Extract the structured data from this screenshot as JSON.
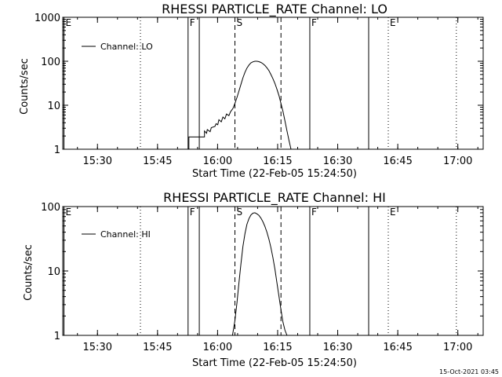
{
  "chart_data": [
    {
      "type": "line",
      "title": "RHESSI PARTICLE_RATE Channel: LO",
      "xlabel": "Start Time (22-Feb-05 15:24:50)",
      "ylabel": "Counts/sec",
      "yscale": "log",
      "ylim": [
        1,
        1000
      ],
      "xlim": [
        -3.5,
        101.5
      ],
      "x_units": "minutes since 15:24:50",
      "xticks": [
        {
          "label": "15:30",
          "value": 5.17
        },
        {
          "label": "15:45",
          "value": 20.17
        },
        {
          "label": "16:00",
          "value": 35.17
        },
        {
          "label": "16:15",
          "value": 50.17
        },
        {
          "label": "16:30",
          "value": 65.17
        },
        {
          "label": "16:45",
          "value": 80.17
        },
        {
          "label": "17:00",
          "value": 95.17
        }
      ],
      "yticks": [
        {
          "label": "1",
          "value": 1
        },
        {
          "label": "10",
          "value": 10
        },
        {
          "label": "100",
          "value": 100
        },
        {
          "label": "1000",
          "value": 1000
        }
      ],
      "legend": {
        "label": "Channel: LO",
        "placement": "top-left"
      },
      "markers": [
        {
          "label": "E",
          "x": -3.2,
          "style": "solid"
        },
        {
          "label": "",
          "x": 15.9,
          "style": "dotted"
        },
        {
          "label": "F",
          "x": 27.8,
          "style": "solid"
        },
        {
          "label": "",
          "x": 30.6,
          "style": "solid"
        },
        {
          "label": "S",
          "x": 39.5,
          "style": "dashed"
        },
        {
          "label": "",
          "x": 51.0,
          "style": "dashed"
        },
        {
          "label": "F",
          "x": 58.2,
          "style": "solid"
        },
        {
          "label": "",
          "x": 72.9,
          "style": "solid"
        },
        {
          "label": "E",
          "x": 77.8,
          "style": "dotted"
        },
        {
          "label": "",
          "x": 94.8,
          "style": "dotted"
        }
      ],
      "series": [
        {
          "name": "Channel: LO",
          "x": [
            28.0,
            28.0,
            31.9,
            31.9,
            32.4,
            32.6,
            33.3,
            33.6,
            34.5,
            34.8,
            35.2,
            35.5,
            36.1,
            36.5,
            37.0,
            37.4,
            38.0,
            38.4,
            39.0,
            39.5,
            40.0,
            40.5,
            41.0,
            41.5,
            42.0,
            42.5,
            43.0,
            43.5,
            44.0,
            44.5,
            45.0,
            45.5,
            46.0,
            46.5,
            47.0,
            47.5,
            48.0,
            48.5,
            49.0,
            49.5,
            50.0,
            50.5,
            51.0,
            51.5,
            52.0,
            52.5,
            53.0,
            53.5
          ],
          "values": [
            1,
            1.9,
            1.9,
            2.6,
            2.3,
            2.8,
            2.5,
            3.1,
            3.3,
            3.8,
            3.6,
            4.7,
            4.2,
            5.4,
            4.9,
            6.3,
            5.8,
            7.1,
            8.5,
            11,
            15,
            21,
            30,
            42,
            56,
            70,
            82,
            92,
            97,
            100,
            100,
            98,
            94,
            88,
            80,
            71,
            61,
            50,
            40,
            31,
            23,
            16.5,
            11,
            7.2,
            4.4,
            2.6,
            1.6,
            1
          ]
        }
      ]
    },
    {
      "type": "line",
      "title": "RHESSI PARTICLE_RATE Channel: HI",
      "xlabel": "Start Time (22-Feb-05 15:24:50)",
      "ylabel": "Counts/sec",
      "yscale": "log",
      "ylim": [
        1,
        100
      ],
      "xlim": [
        -3.5,
        101.5
      ],
      "x_units": "minutes since 15:24:50",
      "xticks": [
        {
          "label": "15:30",
          "value": 5.17
        },
        {
          "label": "15:45",
          "value": 20.17
        },
        {
          "label": "16:00",
          "value": 35.17
        },
        {
          "label": "16:15",
          "value": 50.17
        },
        {
          "label": "16:30",
          "value": 65.17
        },
        {
          "label": "16:45",
          "value": 80.17
        },
        {
          "label": "17:00",
          "value": 95.17
        }
      ],
      "yticks": [
        {
          "label": "1",
          "value": 1
        },
        {
          "label": "10",
          "value": 10
        },
        {
          "label": "100",
          "value": 100
        }
      ],
      "legend": {
        "label": "Channel: HI",
        "placement": "top-left"
      },
      "markers": [
        {
          "label": "E",
          "x": -3.2,
          "style": "solid"
        },
        {
          "label": "",
          "x": 15.9,
          "style": "dotted"
        },
        {
          "label": "F",
          "x": 27.8,
          "style": "solid"
        },
        {
          "label": "",
          "x": 30.6,
          "style": "solid"
        },
        {
          "label": "S",
          "x": 39.5,
          "style": "dashed"
        },
        {
          "label": "",
          "x": 51.0,
          "style": "dashed"
        },
        {
          "label": "F",
          "x": 58.2,
          "style": "solid"
        },
        {
          "label": "",
          "x": 72.9,
          "style": "solid"
        },
        {
          "label": "E",
          "x": 77.8,
          "style": "dotted"
        },
        {
          "label": "",
          "x": 94.8,
          "style": "dotted"
        }
      ],
      "series": [
        {
          "name": "Channel: HI",
          "x": [
            38.9,
            39.5,
            40.0,
            40.5,
            41.0,
            41.5,
            42.0,
            42.5,
            43.0,
            43.5,
            44.0,
            44.5,
            45.0,
            45.5,
            46.0,
            46.5,
            47.0,
            47.5,
            48.0,
            48.5,
            49.0,
            49.5,
            50.0,
            50.5,
            51.0,
            51.5,
            52.0,
            52.5
          ],
          "values": [
            1,
            1.7,
            3.2,
            6.5,
            13,
            24,
            38,
            53,
            65,
            74,
            79,
            80,
            77,
            73,
            66,
            58,
            49,
            40,
            31,
            23,
            16,
            10.5,
            6.5,
            4,
            2.5,
            1.6,
            1.2,
            1
          ]
        }
      ]
    }
  ],
  "footer": {
    "timestamp": "15-Oct-2021 03:45"
  }
}
